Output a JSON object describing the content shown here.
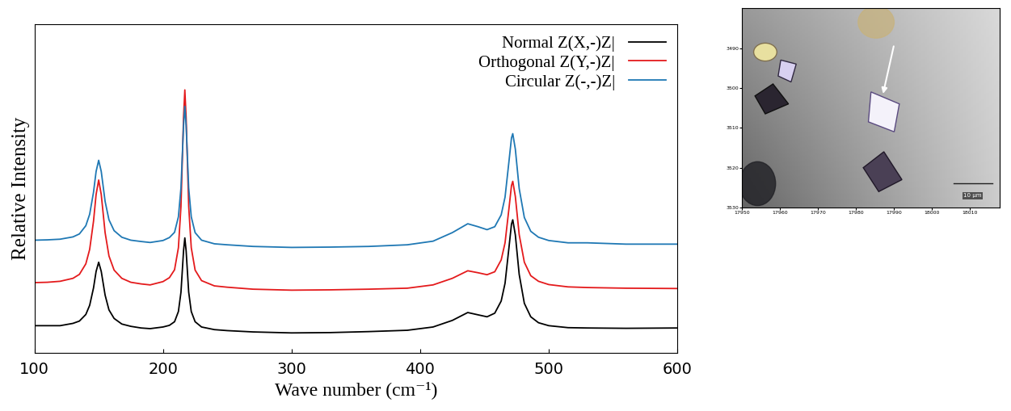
{
  "chart_data": [
    {
      "type": "line",
      "x_label": "Wave number (cm⁻¹)",
      "y_label": "Relative Intensity",
      "x": [
        100,
        110,
        120,
        130,
        135,
        140,
        143,
        146,
        148,
        150,
        152,
        155,
        158,
        162,
        168,
        175,
        183,
        190,
        200,
        205,
        209,
        212,
        214,
        216,
        217,
        218,
        220,
        222,
        225,
        230,
        240,
        250,
        270,
        300,
        330,
        360,
        390,
        410,
        425,
        437,
        445,
        452,
        458,
        463,
        466,
        469,
        471,
        472,
        474,
        477,
        481,
        486,
        492,
        500,
        515,
        530,
        560,
        600
      ],
      "series": [
        {
          "name": "Normal Z(X,-)Z|",
          "color": "#000000",
          "values": [
            8.2,
            8.2,
            8.2,
            8.9,
            9.6,
            11.6,
            14.4,
            19.7,
            24.7,
            27.5,
            24.7,
            17.5,
            13.0,
            10.4,
            8.7,
            8.0,
            7.5,
            7.3,
            7.8,
            8.3,
            9.4,
            12.5,
            18.4,
            31.0,
            34.9,
            31.0,
            18.4,
            12.5,
            9.4,
            7.8,
            7.0,
            6.7,
            6.3,
            6.0,
            6.1,
            6.4,
            6.8,
            7.8,
            9.8,
            12.2,
            11.5,
            10.9,
            12.0,
            15.7,
            21.1,
            31.8,
            39.1,
            40.4,
            35.8,
            23.8,
            15.0,
            10.9,
            9.1,
            8.2,
            7.6,
            7.5,
            7.4,
            7.5
          ]
        },
        {
          "name": "Orthogonal Z(Y,-)Z|",
          "color": "#e41a1c",
          "values": [
            21.3,
            21.4,
            21.7,
            22.6,
            23.8,
            27.0,
            31.4,
            40.0,
            48.1,
            52.5,
            48.1,
            36.5,
            29.4,
            25.1,
            22.6,
            21.4,
            20.9,
            20.6,
            21.6,
            22.8,
            25.2,
            31.9,
            44.5,
            71.6,
            79.9,
            71.6,
            44.5,
            31.9,
            25.1,
            21.9,
            20.3,
            19.9,
            19.3,
            19.0,
            19.1,
            19.3,
            19.6,
            20.6,
            22.6,
            24.9,
            24.3,
            23.7,
            24.6,
            28.2,
            33.4,
            43.7,
            50.8,
            52.1,
            47.5,
            35.9,
            27.5,
            23.4,
            21.7,
            20.7,
            20.0,
            19.8,
            19.6,
            19.5
          ]
        },
        {
          "name": "Circular Z(-,-)Z|",
          "color": "#1f78b4",
          "values": [
            34.2,
            34.3,
            34.5,
            35.2,
            36.1,
            38.6,
            42.1,
            48.8,
            55.1,
            58.5,
            55.1,
            46.0,
            40.4,
            37.1,
            35.1,
            34.2,
            33.8,
            33.5,
            34.1,
            35.0,
            36.6,
            41.3,
            50.1,
            69.1,
            74.9,
            69.1,
            50.1,
            41.3,
            36.5,
            34.2,
            33.1,
            32.8,
            32.3,
            32.0,
            32.1,
            32.3,
            32.8,
            33.9,
            36.5,
            39.2,
            38.3,
            37.4,
            38.3,
            41.9,
            47.3,
            58.0,
            65.3,
            66.6,
            61.9,
            49.9,
            41.1,
            36.9,
            35.1,
            34.1,
            33.4,
            33.4,
            33.0,
            33.0
          ]
        }
      ],
      "xlim": [
        100,
        600
      ],
      "xticks": [
        100,
        200,
        300,
        400,
        500,
        600
      ],
      "ylim": [
        0,
        100
      ],
      "yticks": [],
      "tick_labels": "x",
      "legend": "upper right",
      "grid": false
    },
    {
      "type": "image",
      "xlim": [
        17950,
        18018
      ],
      "xticks": [
        17950,
        17960,
        17970,
        17980,
        17990,
        18000,
        18010
      ],
      "ylim": [
        3530,
        3480
      ],
      "yticks": [
        3490,
        3500,
        3510,
        3520,
        3530
      ],
      "annotation": "10 µm"
    }
  ]
}
